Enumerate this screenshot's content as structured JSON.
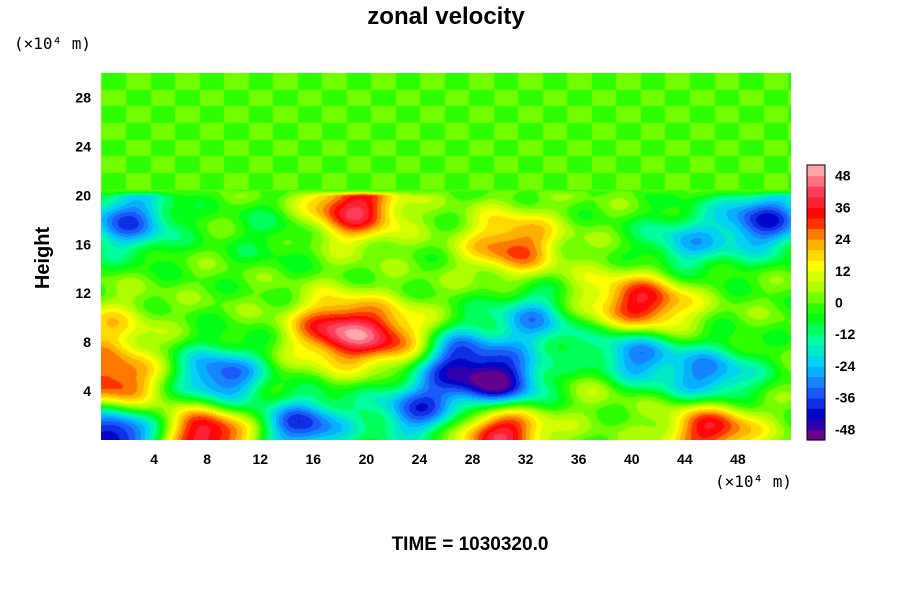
{
  "chart_data": {
    "type": "heatmap",
    "title": "zonal velocity",
    "ylabel": "Height",
    "xlabel": "",
    "x_unit": "(×10⁴ m)",
    "y_unit": "(×10⁴ m)",
    "xlim": [
      0,
      52
    ],
    "ylim": [
      0,
      30
    ],
    "x_ticks": [
      4,
      8,
      12,
      16,
      20,
      24,
      28,
      32,
      36,
      40,
      44,
      48
    ],
    "y_ticks": [
      4,
      8,
      12,
      16,
      20,
      24,
      28
    ],
    "colorbar": {
      "range": [
        -52,
        52
      ],
      "ticks": [
        48,
        36,
        24,
        12,
        0,
        -12,
        -24,
        -36,
        -48
      ],
      "palette": [
        "#800080",
        "#0000c8",
        "#1e64ff",
        "#00c8ff",
        "#00ffa0",
        "#00ff00",
        "#a0ff00",
        "#ffff00",
        "#ffa000",
        "#ff0000",
        "#ff4060",
        "#ffc0c0"
      ]
    },
    "background_value": 0,
    "anomalies": [
      {
        "x": 18,
        "y": 9,
        "value": 42
      },
      {
        "x": 19,
        "y": 19,
        "value": 40
      },
      {
        "x": 31,
        "y": 16,
        "value": 30
      },
      {
        "x": 41,
        "y": 11,
        "value": 38
      },
      {
        "x": 30,
        "y": 1,
        "value": 46
      },
      {
        "x": 8,
        "y": 0.5,
        "value": 44
      },
      {
        "x": 46,
        "y": 1,
        "value": 38
      },
      {
        "x": 1,
        "y": 4.5,
        "value": 36
      },
      {
        "x": 23,
        "y": 8,
        "value": 34
      },
      {
        "x": 0.5,
        "y": 9,
        "value": 16
      },
      {
        "x": 14,
        "y": 3,
        "value": 14
      },
      {
        "x": 36,
        "y": 11,
        "value": 12
      },
      {
        "x": 38,
        "y": 5,
        "value": 10
      },
      {
        "x": 30,
        "y": 4.5,
        "value": -50
      },
      {
        "x": 26,
        "y": 7,
        "value": -40
      },
      {
        "x": 9,
        "y": 5,
        "value": -38
      },
      {
        "x": 40,
        "y": 7,
        "value": -36
      },
      {
        "x": 46,
        "y": 5,
        "value": -32
      },
      {
        "x": 50,
        "y": 18,
        "value": -38
      },
      {
        "x": 2,
        "y": 18,
        "value": -34
      },
      {
        "x": 15,
        "y": 1.5,
        "value": -46
      },
      {
        "x": 1,
        "y": 0.5,
        "value": -50
      },
      {
        "x": 24,
        "y": 2.5,
        "value": -34
      },
      {
        "x": 44,
        "y": 16,
        "value": -22
      },
      {
        "x": 33,
        "y": 10,
        "value": -30
      },
      {
        "x": 13,
        "y": 17,
        "value": -8
      }
    ],
    "time_label": "TIME = 1030320.0"
  }
}
